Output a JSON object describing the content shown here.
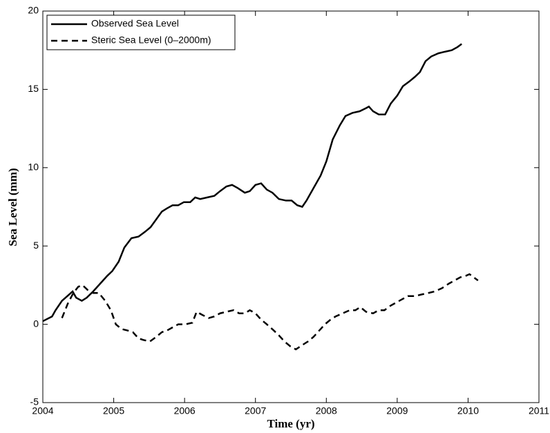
{
  "chart_data": {
    "type": "line",
    "xlabel": "Time (yr)",
    "ylabel": "Sea Level (mm)",
    "xlim": [
      2004,
      2011
    ],
    "xticks": [
      2004,
      2005,
      2006,
      2007,
      2008,
      2009,
      2010,
      2011
    ],
    "ylim": [
      -5,
      20
    ],
    "yticks": [
      -5,
      0,
      5,
      10,
      15,
      20
    ],
    "grid": false,
    "legend": "upper left",
    "series": [
      {
        "name": "Observed Sea Level",
        "color": "#000000",
        "line_style": "solid",
        "x": [
          2004.0,
          2004.13,
          2004.18,
          2004.27,
          2004.37,
          2004.42,
          2004.47,
          2004.55,
          2004.62,
          2004.71,
          2004.81,
          2004.91,
          2004.98,
          2005.07,
          2005.15,
          2005.25,
          2005.35,
          2005.44,
          2005.52,
          2005.6,
          2005.68,
          2005.75,
          2005.83,
          2005.91,
          2005.99,
          2006.08,
          2006.15,
          2006.22,
          2006.32,
          2006.42,
          2006.5,
          2006.59,
          2006.67,
          2006.75,
          2006.85,
          2006.92,
          2007.0,
          2007.08,
          2007.16,
          2007.24,
          2007.33,
          2007.43,
          2007.51,
          2007.59,
          2007.66,
          2007.72,
          2007.82,
          2007.92,
          2008.0,
          2008.09,
          2008.19,
          2008.27,
          2008.37,
          2008.47,
          2008.56,
          2008.6,
          2008.66,
          2008.74,
          2008.83,
          2008.91,
          2009.0,
          2009.08,
          2009.17,
          2009.25,
          2009.32,
          2009.4,
          2009.48,
          2009.58,
          2009.67,
          2009.77,
          2009.85,
          2009.91
        ],
        "values": [
          0.2,
          0.5,
          0.9,
          1.5,
          1.9,
          2.1,
          1.7,
          1.5,
          1.7,
          2.1,
          2.6,
          3.1,
          3.4,
          4.0,
          4.9,
          5.5,
          5.6,
          5.9,
          6.2,
          6.7,
          7.2,
          7.4,
          7.6,
          7.6,
          7.8,
          7.8,
          8.1,
          8.0,
          8.1,
          8.2,
          8.5,
          8.8,
          8.9,
          8.7,
          8.4,
          8.5,
          8.9,
          9.0,
          8.6,
          8.4,
          8.0,
          7.9,
          7.9,
          7.6,
          7.5,
          7.9,
          8.7,
          9.5,
          10.4,
          11.8,
          12.7,
          13.3,
          13.5,
          13.6,
          13.8,
          13.9,
          13.6,
          13.4,
          13.4,
          14.1,
          14.6,
          15.2,
          15.5,
          15.8,
          16.1,
          16.8,
          17.1,
          17.3,
          17.4,
          17.5,
          17.7,
          17.9
        ]
      },
      {
        "name": "Steric Sea Level (0–2000m)",
        "color": "#000000",
        "line_style": "dashed",
        "x": [
          2004.27,
          2004.35,
          2004.43,
          2004.5,
          2004.56,
          2004.63,
          2004.71,
          2004.79,
          2004.88,
          2004.96,
          2005.03,
          2005.11,
          2005.2,
          2005.27,
          2005.35,
          2005.42,
          2005.51,
          2005.6,
          2005.68,
          2005.75,
          2005.83,
          2005.91,
          2006.01,
          2006.11,
          2006.17,
          2006.25,
          2006.34,
          2006.42,
          2006.5,
          2006.59,
          2006.69,
          2006.77,
          2006.85,
          2006.92,
          2007.0,
          2007.08,
          2007.16,
          2007.26,
          2007.33,
          2007.41,
          2007.49,
          2007.57,
          2007.67,
          2007.74,
          2007.82,
          2007.9,
          2007.98,
          2008.06,
          2008.13,
          2008.23,
          2008.33,
          2008.41,
          2008.48,
          2008.56,
          2008.66,
          2008.74,
          2008.82,
          2008.91,
          2008.99,
          2009.07,
          2009.15,
          2009.25,
          2009.34,
          2009.44,
          2009.53,
          2009.63,
          2009.73,
          2009.81,
          2009.89,
          2009.97,
          2010.02,
          2010.08,
          2010.14
        ],
        "values": [
          0.4,
          1.3,
          2.0,
          2.4,
          2.5,
          2.2,
          2.0,
          2.0,
          1.5,
          0.9,
          0.0,
          -0.3,
          -0.4,
          -0.5,
          -0.9,
          -1.0,
          -1.1,
          -0.8,
          -0.5,
          -0.4,
          -0.2,
          0.0,
          0.0,
          0.1,
          0.8,
          0.6,
          0.4,
          0.5,
          0.7,
          0.8,
          0.9,
          0.7,
          0.7,
          0.9,
          0.7,
          0.3,
          0.0,
          -0.4,
          -0.7,
          -1.1,
          -1.4,
          -1.6,
          -1.3,
          -1.1,
          -0.8,
          -0.4,
          0.0,
          0.3,
          0.5,
          0.7,
          0.9,
          0.9,
          1.1,
          0.8,
          0.7,
          0.9,
          0.9,
          1.2,
          1.4,
          1.6,
          1.8,
          1.8,
          1.9,
          2.0,
          2.1,
          2.3,
          2.6,
          2.8,
          3.0,
          3.1,
          3.2,
          3.0,
          2.8
        ]
      }
    ]
  }
}
